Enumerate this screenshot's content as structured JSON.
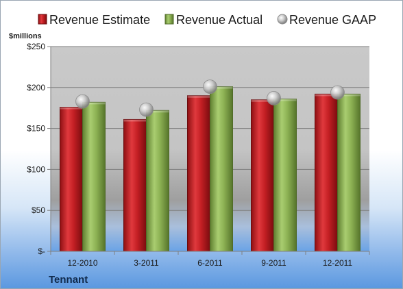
{
  "chart_data": {
    "type": "bar",
    "categories": [
      "12-2010",
      "3-2011",
      "6-2011",
      "9-2011",
      "12-2011"
    ],
    "series": [
      {
        "name": "Revenue Estimate",
        "kind": "bar",
        "color": "#c41f24",
        "values": [
          176,
          161,
          190,
          185,
          192
        ]
      },
      {
        "name": "Revenue Actual",
        "kind": "bar",
        "color": "#8db254",
        "values": [
          182,
          172,
          201,
          186,
          192
        ]
      },
      {
        "name": "Revenue GAAP",
        "kind": "marker",
        "color": "#b9b9b9",
        "values": [
          183,
          173,
          201,
          187,
          194
        ]
      }
    ],
    "ylim": [
      0,
      250
    ],
    "yticks": [
      0,
      50,
      100,
      150,
      200,
      250
    ],
    "ytick_labels": [
      "$-",
      "$50",
      "$100",
      "$150",
      "$200",
      "$250"
    ],
    "unit_label": "$millions",
    "company": "Tennant",
    "grid": true,
    "legend_position": "top"
  }
}
